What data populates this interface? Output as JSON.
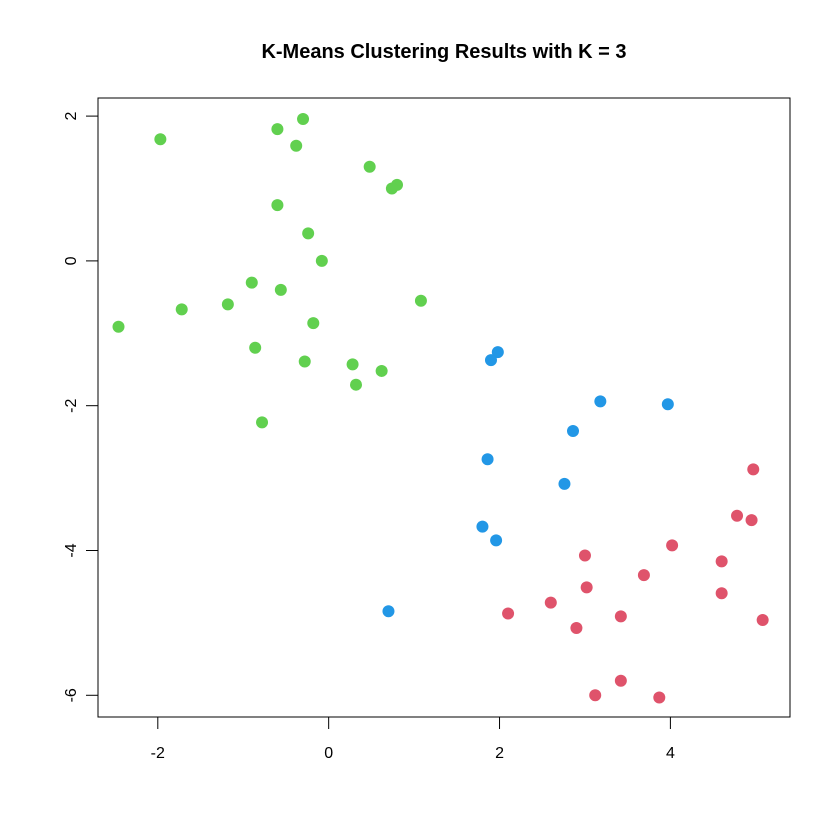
{
  "chart_data": {
    "type": "scatter",
    "title": "K-Means Clustering Results with K = 3",
    "xlabel": "",
    "ylabel": "",
    "xlim": [
      -2.7,
      5.4
    ],
    "ylim": [
      -6.3,
      2.25
    ],
    "x_ticks": [
      -2,
      0,
      2,
      4
    ],
    "y_ticks": [
      2,
      0,
      -2,
      -4,
      -6
    ],
    "grid": false,
    "legend": "none",
    "series": [
      {
        "color": "#61D04F",
        "points": [
          [
            -1.97,
            1.68
          ],
          [
            -0.6,
            1.82
          ],
          [
            -0.3,
            1.96
          ],
          [
            -0.38,
            1.59
          ],
          [
            0.48,
            1.3
          ],
          [
            0.8,
            1.05
          ],
          [
            0.74,
            1.0
          ],
          [
            -0.6,
            0.77
          ],
          [
            -0.24,
            0.38
          ],
          [
            -0.08,
            0.0
          ],
          [
            -0.9,
            -0.3
          ],
          [
            -0.56,
            -0.4
          ],
          [
            -2.46,
            -0.91
          ],
          [
            -1.72,
            -0.67
          ],
          [
            -1.18,
            -0.6
          ],
          [
            1.08,
            -0.55
          ],
          [
            -0.18,
            -0.86
          ],
          [
            -0.86,
            -1.2
          ],
          [
            -0.28,
            -1.39
          ],
          [
            0.28,
            -1.43
          ],
          [
            0.62,
            -1.52
          ],
          [
            0.32,
            -1.71
          ],
          [
            -0.78,
            -2.23
          ]
        ]
      },
      {
        "color": "#2297E6",
        "points": [
          [
            1.98,
            -1.26
          ],
          [
            1.9,
            -1.37
          ],
          [
            3.18,
            -1.94
          ],
          [
            3.97,
            -1.98
          ],
          [
            2.86,
            -2.35
          ],
          [
            1.86,
            -2.74
          ],
          [
            2.76,
            -3.08
          ],
          [
            1.8,
            -3.67
          ],
          [
            1.96,
            -3.86
          ],
          [
            0.7,
            -4.84
          ]
        ]
      },
      {
        "color": "#DF536B",
        "points": [
          [
            4.97,
            -2.88
          ],
          [
            4.78,
            -3.52
          ],
          [
            4.95,
            -3.58
          ],
          [
            4.02,
            -3.93
          ],
          [
            3.0,
            -4.07
          ],
          [
            4.6,
            -4.15
          ],
          [
            3.69,
            -4.34
          ],
          [
            3.02,
            -4.51
          ],
          [
            4.6,
            -4.59
          ],
          [
            2.6,
            -4.72
          ],
          [
            2.1,
            -4.87
          ],
          [
            3.42,
            -4.91
          ],
          [
            5.08,
            -4.96
          ],
          [
            2.9,
            -5.07
          ],
          [
            3.42,
            -5.8
          ],
          [
            3.12,
            -6.0
          ],
          [
            3.87,
            -6.03
          ]
        ]
      }
    ]
  }
}
